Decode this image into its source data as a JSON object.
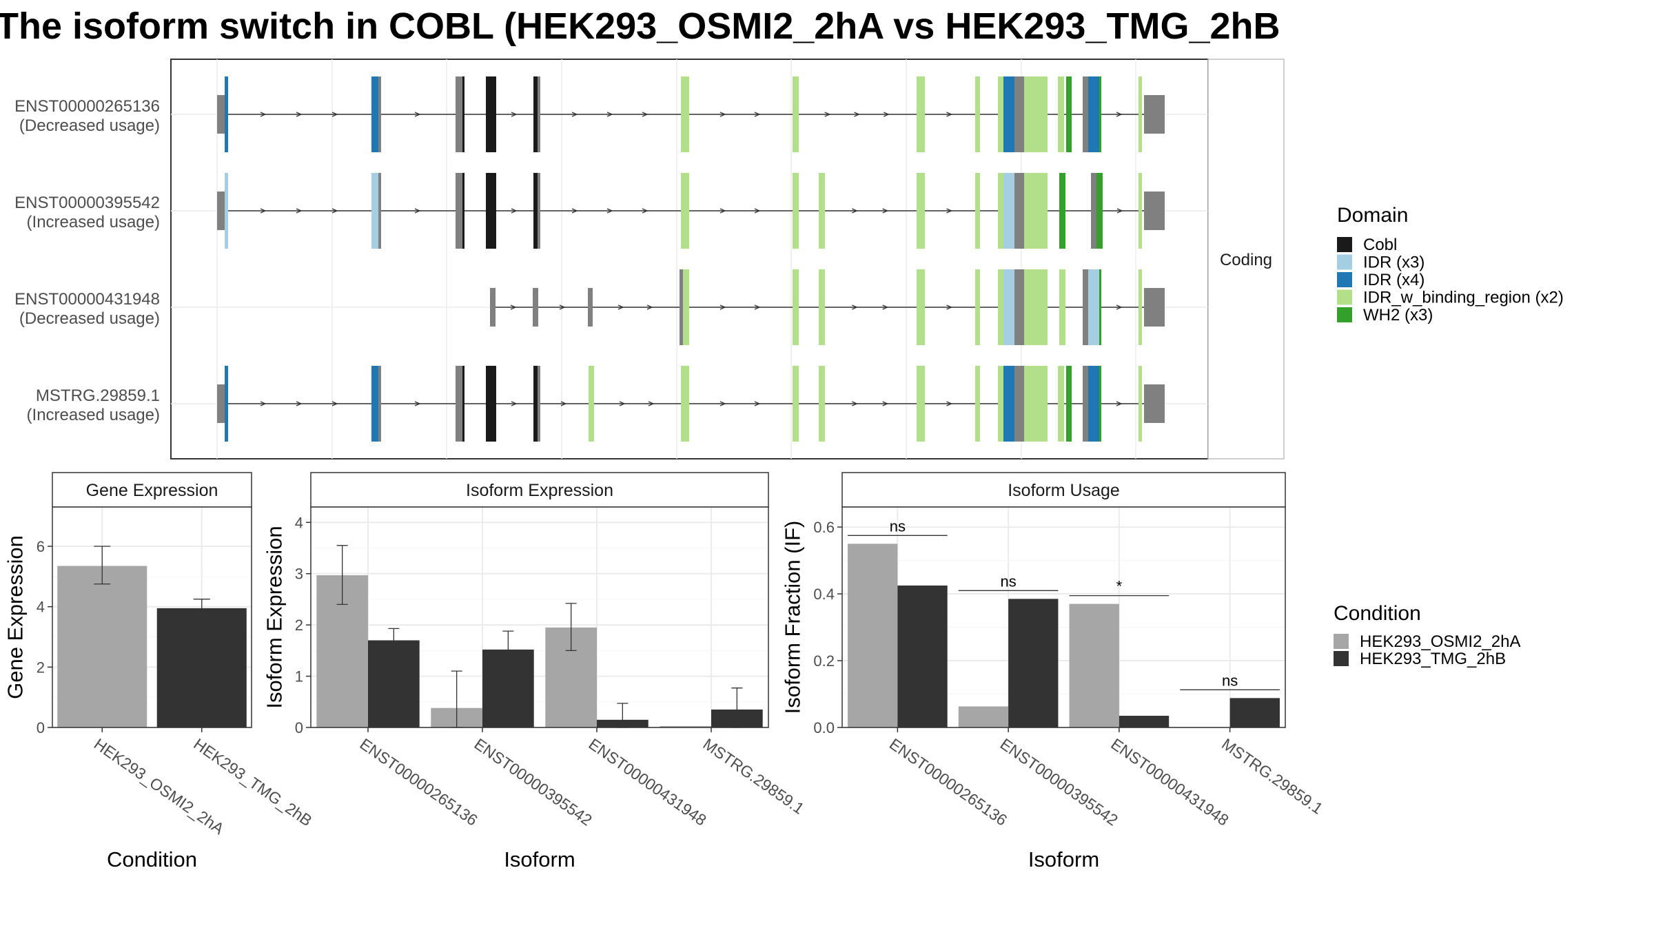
{
  "title": "The isoform switch in COBL (HEK293_OSMI2_2hA vs HEK293_TMG_2hB",
  "colors": {
    "cobl": "#1a1a1a",
    "idr_x3": "#a6cee3",
    "idr_x4": "#1f78b4",
    "idr_w_binding_region": "#b2df8a",
    "wh2": "#33a02c",
    "noncoding_utr": "#808080",
    "cond_a": "#a6a6a6",
    "cond_b": "#333333"
  },
  "structure": {
    "facet_label": "Coding",
    "isoforms": [
      {
        "id": "ENST00000265136",
        "usage": "(Decreased usage)"
      },
      {
        "id": "ENST00000395542",
        "usage": "(Increased usage)"
      },
      {
        "id": "ENST00000431948",
        "usage": "(Decreased usage)"
      },
      {
        "id": "MSTRG.29859.1",
        "usage": "(Increased usage)"
      }
    ]
  },
  "domain_legend": {
    "title": "Domain",
    "items": [
      {
        "label": "Cobl",
        "color": "#1a1a1a"
      },
      {
        "label": "IDR (x3)",
        "color": "#a6cee3"
      },
      {
        "label": "IDR (x4)",
        "color": "#1f78b4"
      },
      {
        "label": "IDR_w_binding_region (x2)",
        "color": "#b2df8a"
      },
      {
        "label": "WH2 (x3)",
        "color": "#33a02c"
      }
    ]
  },
  "condition_legend": {
    "title": "Condition",
    "items": [
      {
        "label": "HEK293_OSMI2_2hA",
        "color": "#a6a6a6"
      },
      {
        "label": "HEK293_TMG_2hB",
        "color": "#333333"
      }
    ]
  },
  "chart_data": [
    {
      "type": "bar",
      "title": "Gene Expression",
      "xlabel": "Condition",
      "ylabel": "Gene Expression",
      "categories": [
        "HEK293_OSMI2_2hA",
        "HEK293_TMG_2hB"
      ],
      "values": [
        5.35,
        3.95
      ],
      "errors": [
        [
          4.75,
          6.0
        ],
        [
          3.7,
          4.25
        ]
      ],
      "yticks": [
        "0",
        "2",
        "4",
        "6"
      ],
      "ylim": [
        0,
        7.3
      ]
    },
    {
      "type": "bar",
      "title": "Isoform Expression",
      "xlabel": "Isoform",
      "ylabel": "Isoform Expression",
      "categories": [
        "ENST00000265136",
        "ENST00000395542",
        "ENST00000431948",
        "MSTRG.29859.1"
      ],
      "series": [
        {
          "name": "HEK293_OSMI2_2hA",
          "values": [
            2.97,
            0.38,
            1.95,
            0.0
          ],
          "errors": [
            [
              2.4,
              3.55
            ],
            [
              0.0,
              1.1
            ],
            [
              1.5,
              2.42
            ],
            [
              0.0,
              0.0
            ]
          ]
        },
        {
          "name": "HEK293_TMG_2hB",
          "values": [
            1.7,
            1.52,
            0.15,
            0.35
          ],
          "errors": [
            [
              1.5,
              1.93
            ],
            [
              1.15,
              1.88
            ],
            [
              0.0,
              0.47
            ],
            [
              0.0,
              0.77
            ]
          ]
        }
      ],
      "yticks": [
        "0",
        "1",
        "2",
        "3",
        "4"
      ],
      "ylim": [
        0,
        4.3
      ]
    },
    {
      "type": "bar",
      "title": "Isoform Usage",
      "xlabel": "Isoform",
      "ylabel": "Isoform Fraction (IF)",
      "categories": [
        "ENST00000265136",
        "ENST00000395542",
        "ENST00000431948",
        "MSTRG.29859.1"
      ],
      "series": [
        {
          "name": "HEK293_OSMI2_2hA",
          "values": [
            0.55,
            0.063,
            0.37,
            0.0
          ]
        },
        {
          "name": "HEK293_TMG_2hB",
          "values": [
            0.425,
            0.385,
            0.035,
            0.088
          ]
        }
      ],
      "significance": [
        "ns",
        "ns",
        "*",
        "ns"
      ],
      "yticks": [
        "0.0",
        "0.2",
        "0.4",
        "0.6"
      ],
      "ylim": [
        0,
        0.66
      ]
    }
  ]
}
